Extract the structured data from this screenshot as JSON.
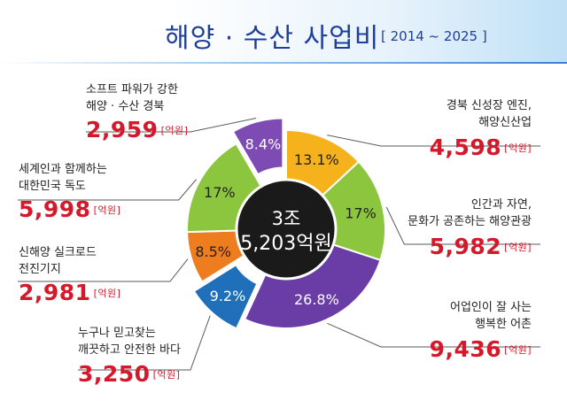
{
  "title": "해양 · 수산 사업비",
  "title_range": "[ 2014 ~ 2025 ]",
  "center": {
    "line1": "3조",
    "line2": "5,203억원"
  },
  "unit": "[억원]",
  "chart_data": {
    "type": "pie",
    "title": "해양 · 수산 사업비",
    "categories": [
      "경북 신성장 엔진, 해양신산업",
      "인간과 자연, 문화가 공존하는 해양관광",
      "어업인이 잘 사는 행복한 어촌",
      "누구나 믿고찾는 깨끗하고 안전한 바다",
      "신해양 실크로드 전진기지",
      "세계인과 함께하는 대한민국 독도",
      "소프트 파워가 강한 해양 · 수산 경북"
    ],
    "values": [
      4598,
      5982,
      9436,
      3250,
      2981,
      5998,
      2959
    ],
    "percent_labels": [
      "13.1%",
      "17%",
      "26.8%",
      "9.2%",
      "8.5%",
      "17%",
      "8.4%"
    ],
    "amount_labels": [
      "4,598",
      "5,982",
      "9,436",
      "3,250",
      "2,981",
      "5,998",
      "2,959"
    ],
    "colors": [
      "#f6b21d",
      "#8cc63f",
      "#6a3ca6",
      "#1f6fba",
      "#ee7d1f",
      "#8cc63f",
      "#7e4bb5"
    ],
    "exploded": [
      false,
      false,
      false,
      true,
      false,
      false,
      true
    ]
  },
  "labels": {
    "right": [
      {
        "text": "경북 신성장 엔진,\n해양신산업",
        "amount": "4,598"
      },
      {
        "text": "인간과 자연,\n문화가 공존하는 해양관광",
        "amount": "5,982"
      },
      {
        "text": "어업인이 잘 사는\n행복한 어촌",
        "amount": "9,436"
      }
    ],
    "left": [
      {
        "text": "소프트 파워가 강한\n해양 · 수산 경북",
        "amount": "2,959"
      },
      {
        "text": "세계인과 함께하는\n대한민국 독도",
        "amount": "5,998"
      },
      {
        "text": "신해양 실크로드\n전진기지",
        "amount": "2,981"
      },
      {
        "text": "누구나 믿고찾는\n깨끗하고 안전한 바다",
        "amount": "3,250"
      }
    ]
  }
}
